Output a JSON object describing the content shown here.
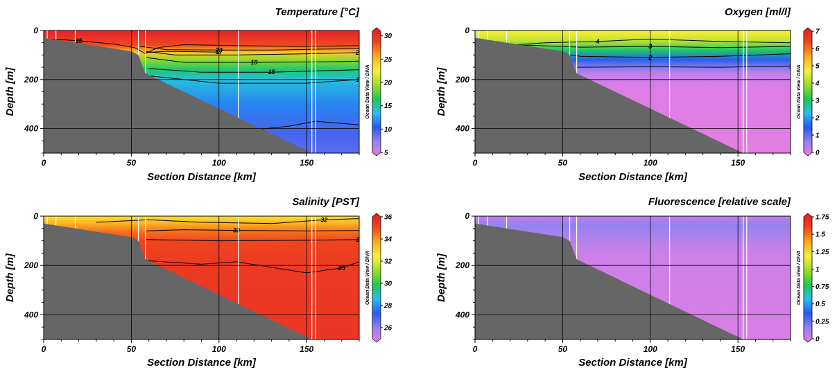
{
  "credit": "Ocean Data View / DIVA",
  "chart_data": [
    {
      "type": "heatmap",
      "title": "Temperature [°C]",
      "xlabel": "Section Distance [km]",
      "ylabel": "Depth [m]",
      "xlim": [
        0,
        180
      ],
      "ylim": [
        500,
        0
      ],
      "xticks": [
        "0",
        "50",
        "100",
        "150"
      ],
      "yticks": [
        "0",
        "200",
        "400"
      ],
      "grid": true,
      "colorbar": {
        "min": 5,
        "max": 31,
        "ticks": [
          "5",
          "10",
          "15",
          "20",
          "25",
          "30"
        ]
      },
      "contour_labels": [
        "25",
        "23",
        "21",
        "19",
        "17",
        "15",
        "13"
      ],
      "stations_km": [
        2,
        7,
        18,
        54,
        58,
        111,
        153,
        155,
        180
      ],
      "surface": {
        "stops": [
          {
            "depth": 0,
            "value": 30.5
          },
          {
            "depth": 60,
            "value": 28
          },
          {
            "depth": 90,
            "value": 24
          },
          {
            "depth": 120,
            "value": 19
          },
          {
            "depth": 160,
            "value": 16
          },
          {
            "depth": 200,
            "value": 14
          },
          {
            "depth": 300,
            "value": 12
          },
          {
            "depth": 420,
            "value": 10
          },
          {
            "depth": 500,
            "value": 9.5
          }
        ]
      }
    },
    {
      "type": "heatmap",
      "title": "Oxygen [ml/l]",
      "xlabel": "Section Distance [km]",
      "ylabel": "Depth [m]",
      "xlim": [
        0,
        180
      ],
      "ylim": [
        500,
        0
      ],
      "xticks": [
        "0",
        "50",
        "100",
        "150"
      ],
      "yticks": [
        "0",
        "200",
        "400"
      ],
      "grid": true,
      "colorbar": {
        "min": 0,
        "max": 7,
        "ticks": [
          "0",
          "1",
          "2",
          "3",
          "4",
          "5",
          "6",
          "7"
        ]
      },
      "contour_labels": [
        "4",
        "3",
        "2",
        "1"
      ],
      "stations_km": [
        2,
        7,
        18,
        54,
        58,
        111,
        153,
        155,
        180
      ],
      "surface": {
        "stops": [
          {
            "depth": 0,
            "value": 4.7
          },
          {
            "depth": 40,
            "value": 4.2
          },
          {
            "depth": 80,
            "value": 3.0
          },
          {
            "depth": 120,
            "value": 1.6
          },
          {
            "depth": 150,
            "value": 0.9
          },
          {
            "depth": 180,
            "value": 0.3
          },
          {
            "depth": 250,
            "value": 0.05
          },
          {
            "depth": 500,
            "value": 0.0
          }
        ]
      }
    },
    {
      "type": "heatmap",
      "title": "Salinity [PST]",
      "xlabel": "Section Distance [km]",
      "ylabel": "Depth [m]",
      "xlim": [
        0,
        180
      ],
      "ylim": [
        500,
        0
      ],
      "xticks": [
        "0",
        "50",
        "100",
        "150"
      ],
      "yticks": [
        "0",
        "200",
        "400"
      ],
      "grid": true,
      "colorbar": {
        "min": 25,
        "max": 36,
        "ticks": [
          "26",
          "28",
          "30",
          "32",
          "34",
          "36"
        ]
      },
      "contour_labels": [
        "32",
        "33",
        "34",
        "35"
      ],
      "stations_km": [
        2,
        7,
        18,
        54,
        58,
        111,
        153,
        155,
        180
      ],
      "surface": {
        "stops": [
          {
            "depth": 0,
            "value": 32.6
          },
          {
            "depth": 30,
            "value": 33.4
          },
          {
            "depth": 60,
            "value": 34.2
          },
          {
            "depth": 100,
            "value": 34.8
          },
          {
            "depth": 200,
            "value": 35.1
          },
          {
            "depth": 500,
            "value": 35.2
          }
        ]
      }
    },
    {
      "type": "heatmap",
      "title": "Fluorescence [relative scale]",
      "xlabel": "Section Distance [km]",
      "ylabel": "Depth [m]",
      "xlim": [
        0,
        180
      ],
      "ylim": [
        500,
        0
      ],
      "xticks": [
        "0",
        "50",
        "100",
        "150"
      ],
      "yticks": [
        "0",
        "200",
        "400"
      ],
      "grid": true,
      "colorbar": {
        "min": 0,
        "max": 1.75,
        "ticks": [
          "0",
          "0.25",
          "0.5",
          "0.75",
          "1",
          "1.25",
          "1.5",
          "1.75"
        ]
      },
      "contour_labels": [],
      "stations_km": [
        2,
        7,
        18,
        54,
        58,
        111,
        153,
        155,
        180
      ],
      "surface": {
        "stops": [
          {
            "depth": 0,
            "value": 0.1
          },
          {
            "depth": 40,
            "value": 0.2
          },
          {
            "depth": 80,
            "value": 0.14
          },
          {
            "depth": 150,
            "value": 0.06
          },
          {
            "depth": 500,
            "value": 0.03
          }
        ]
      }
    }
  ]
}
